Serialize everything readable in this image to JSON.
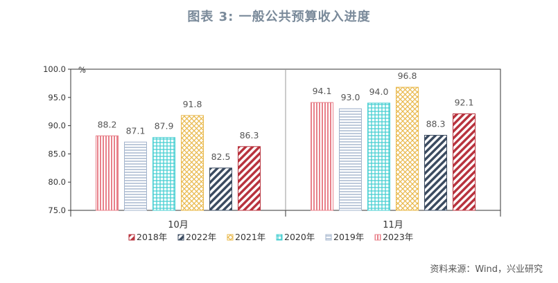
{
  "figure_title": "图表 3:  一般公共预算收入进度",
  "source_note": "资料来源：Wind，兴业研究",
  "chart_data": {
    "type": "bar",
    "title": "图表 3:  一般公共预算收入进度",
    "ylabel": "%",
    "xlabel": "",
    "ylim": [
      75.0,
      100.0
    ],
    "yticks": [
      "75.0",
      "80.0",
      "85.0",
      "90.0",
      "95.0",
      "100.0"
    ],
    "categories": [
      "10月",
      "11月"
    ],
    "legend_position": "bottom",
    "series": [
      {
        "name": "2023年",
        "values": [
          88.2,
          94.1
        ],
        "labels": [
          "88.2",
          "94.1"
        ],
        "color": "#e8808a",
        "pattern": "vlines"
      },
      {
        "name": "2019年",
        "values": [
          87.1,
          93.0
        ],
        "labels": [
          "87.1",
          "93.0"
        ],
        "color": "#a3b4cc",
        "pattern": "hlines"
      },
      {
        "name": "2020年",
        "values": [
          87.9,
          94.0
        ],
        "labels": [
          "87.9",
          "94.0"
        ],
        "color": "#48cfd2",
        "pattern": "grid"
      },
      {
        "name": "2021年",
        "values": [
          91.8,
          96.8
        ],
        "labels": [
          "91.8",
          "96.8"
        ],
        "color": "#e9b84a",
        "pattern": "cross"
      },
      {
        "name": "2022年",
        "values": [
          82.5,
          88.3
        ],
        "labels": [
          "82.5",
          "88.3"
        ],
        "color": "#3b4b60",
        "pattern": "diag"
      },
      {
        "name": "2018年",
        "values": [
          86.3,
          92.1
        ],
        "labels": [
          "86.3",
          "92.1"
        ],
        "color": "#b8333e",
        "pattern": "diag"
      }
    ],
    "legend_order": [
      "2018年",
      "2022年",
      "2021年",
      "2020年",
      "2019年",
      "2023年"
    ]
  }
}
